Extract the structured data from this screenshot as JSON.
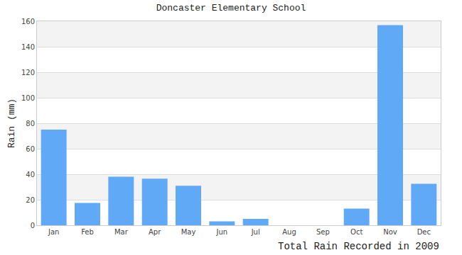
{
  "chart_data": {
    "type": "bar",
    "title": "Doncaster Elementary School",
    "ylabel": "Rain (mm)",
    "xlabel": "Total Rain Recorded in 2009",
    "categories": [
      "Jan",
      "Feb",
      "Mar",
      "Apr",
      "May",
      "Jun",
      "Jul",
      "Aug",
      "Sep",
      "Oct",
      "Nov",
      "Dec"
    ],
    "values": [
      75,
      17.5,
      38,
      36.5,
      31,
      3,
      5,
      0,
      0,
      13,
      157,
      32.5
    ],
    "color": "#60a9f6",
    "ylim": [
      0,
      160
    ],
    "yticks": [
      0,
      20,
      40,
      60,
      80,
      100,
      120,
      140,
      160
    ],
    "grid": true
  }
}
